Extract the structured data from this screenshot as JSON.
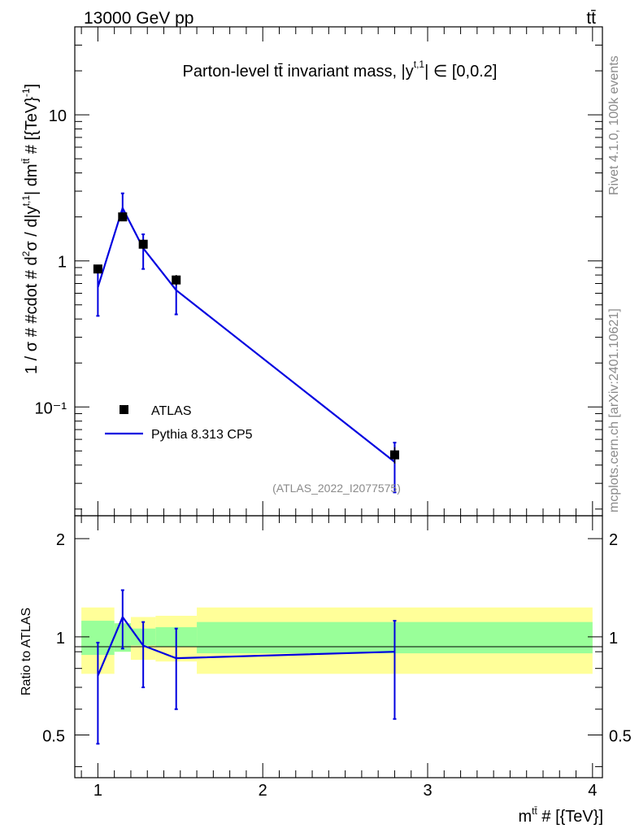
{
  "header": {
    "left": "13000 GeV pp",
    "right": "tt̄"
  },
  "side": {
    "rivet": "Rivet 4.1.0,  100k events",
    "site": "mcplots.cern.ch [arXiv:2401.10621]"
  },
  "chart_data": {
    "type": "line",
    "title": "Parton-level tt̄ invariant mass, |y^{t,1}| ∈ [0,0.2]",
    "watermark": "(ATLAS_2022_I2077575)",
    "xlabel": "m^{tt̄} # [{TeV}]",
    "ylabel": "1 / σ # #cdot # d²σ / d|y^{t,1}| dm^{tt̄} # [{TeV}^{-1}]",
    "ratio_ylabel": "Ratio to ATLAS",
    "xlim": [
      0.86,
      4.06
    ],
    "ylim": [
      0.018,
      40
    ],
    "yscale": "log",
    "ratio_ylim": [
      0.37,
      2.35
    ],
    "top_ticks": [
      "10",
      "1",
      "10⁻¹"
    ],
    "bottom_ticks": [
      "2",
      "1",
      "0.5"
    ],
    "x_ticks": [
      "1",
      "2",
      "3",
      "4"
    ],
    "legend": {
      "position": "bottom-left",
      "entries": [
        "ATLAS",
        "Pythia 8.313 CP5"
      ]
    },
    "bin_edges": [
      0.9,
      1.1,
      1.2,
      1.35,
      1.6,
      4.0
    ],
    "series": [
      {
        "name": "ATLAS",
        "kind": "data",
        "color": "#000000",
        "x": [
          1.0,
          1.15,
          1.275,
          1.475,
          2.8
        ],
        "y": [
          0.88,
          2.0,
          1.3,
          0.74,
          0.047
        ],
        "yerr_lo": [
          0.06,
          0.12,
          0.1,
          0.06,
          0.006
        ],
        "yerr_hi": [
          0.06,
          0.12,
          0.1,
          0.06,
          0.006
        ],
        "band_inner_rel": [
          0.12,
          0.1,
          0.06,
          0.07,
          0.11
        ],
        "band_outer_rel": [
          0.23,
          0.1,
          0.15,
          0.16,
          0.23
        ]
      },
      {
        "name": "Pythia 8.313 CP5",
        "kind": "mc",
        "color": "#0000e0",
        "x": [
          1.0,
          1.15,
          1.275,
          1.475,
          2.8
        ],
        "y": [
          0.66,
          2.3,
          1.22,
          0.63,
          0.042
        ],
        "yerr_lo": [
          0.24,
          0.35,
          0.34,
          0.2,
          0.016
        ],
        "yerr_hi": [
          0.24,
          0.6,
          0.3,
          0.12,
          0.015
        ]
      }
    ],
    "ratio": {
      "x": [
        1.0,
        1.15,
        1.275,
        1.475,
        2.8
      ],
      "y": [
        0.76,
        1.15,
        0.94,
        0.86,
        0.9
      ],
      "err_lo": [
        0.29,
        0.23,
        0.24,
        0.26,
        0.34
      ],
      "err_hi": [
        0.2,
        0.24,
        0.17,
        0.2,
        0.22
      ]
    },
    "colors": {
      "band_inner": "#99ff99",
      "band_outer": "#ffff99",
      "mc": "#0000e0"
    }
  }
}
